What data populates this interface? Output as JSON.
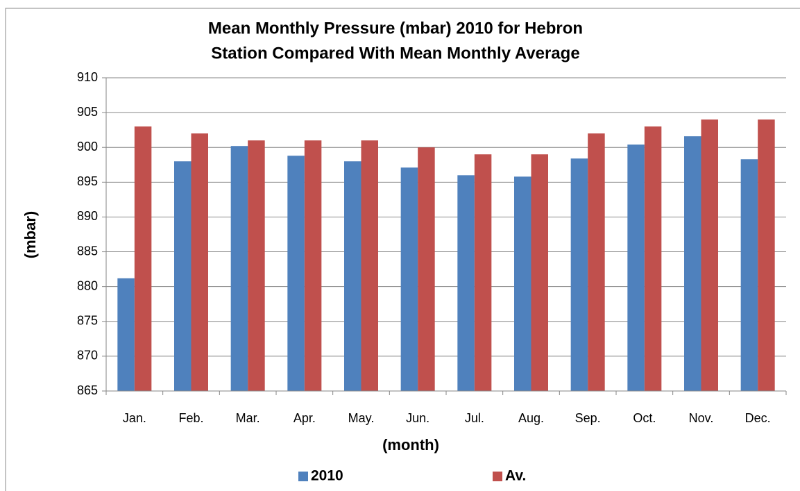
{
  "chart_data": {
    "type": "bar",
    "title": [
      "Mean Monthly Pressure (mbar) 2010 for Hebron",
      "Station Compared With Mean Monthly Average"
    ],
    "x_label": "(month)",
    "y_label": "(mbar)",
    "categories": [
      "Jan.",
      "Feb.",
      "Mar.",
      "Apr.",
      "May.",
      "Jun.",
      "Jul.",
      "Aug.",
      "Sep.",
      "Oct.",
      "Nov.",
      "Dec."
    ],
    "series": [
      {
        "name": "2010",
        "color": "#4f81bd",
        "values": [
          881.2,
          898,
          900.2,
          898.8,
          898,
          897.1,
          896,
          895.8,
          898.4,
          900.4,
          901.6,
          898.3
        ]
      },
      {
        "name": "Av.",
        "color": "#c0504d",
        "values": [
          903,
          902,
          901,
          901,
          901,
          900,
          899,
          899,
          902,
          903,
          904,
          904
        ]
      }
    ],
    "ylim": [
      865,
      910
    ],
    "yticks": [
      865,
      870,
      875,
      880,
      885,
      890,
      895,
      900,
      905,
      910
    ],
    "grid": true,
    "legend": "bottom"
  }
}
